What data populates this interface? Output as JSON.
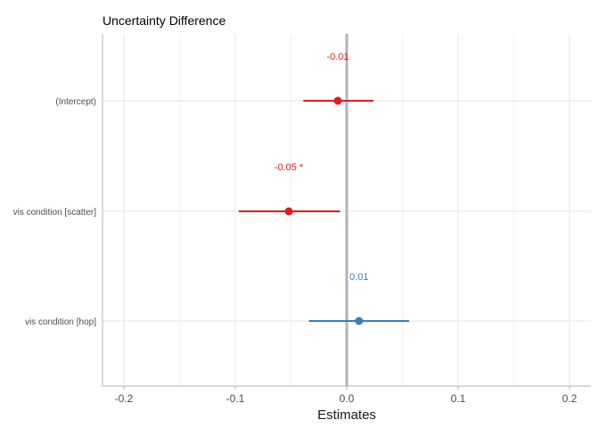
{
  "chart_data": {
    "type": "forest",
    "title": "Uncertainty Difference",
    "xlabel": "Estimates",
    "ylabel": "",
    "xlim": [
      -0.22,
      0.22
    ],
    "xticks": [
      -0.2,
      -0.1,
      0.0,
      0.1,
      0.2
    ],
    "xtick_labels": [
      "-0.2",
      "-0.1",
      "0.0",
      "0.1",
      "0.2"
    ],
    "grid": true,
    "reference_line": 0,
    "terms": [
      {
        "label": "(Intercept)",
        "estimate": -0.008,
        "ci_low": -0.039,
        "ci_high": 0.024,
        "value_label": "-0.01",
        "color": "#e41a1c"
      },
      {
        "label": "vis condition [scatter]",
        "estimate": -0.052,
        "ci_low": -0.097,
        "ci_high": -0.006,
        "value_label": "-0.05 *",
        "color": "#e41a1c"
      },
      {
        "label": "vis condition [hop]",
        "estimate": 0.011,
        "ci_low": -0.034,
        "ci_high": 0.056,
        "value_label": "0.01",
        "color": "#377eb8"
      }
    ]
  }
}
